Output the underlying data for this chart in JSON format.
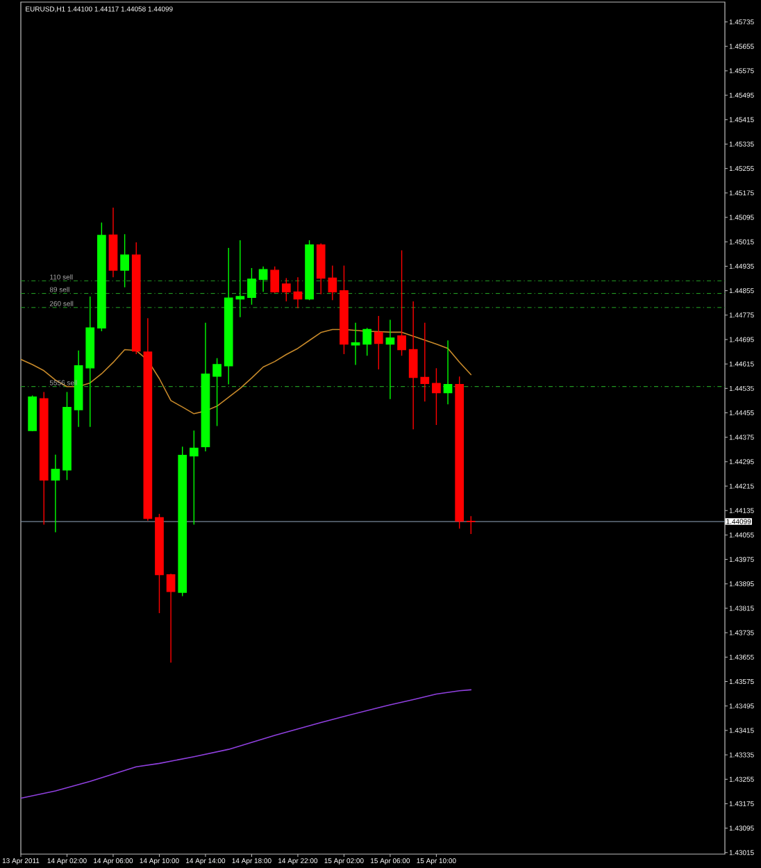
{
  "chart_data": {
    "type": "candlestick",
    "title": "EURUSD,H1 1.44100 1.44117 1.44058 1.44099",
    "x": [
      "2011-04-13T23:00",
      "2011-04-14T00:00",
      "2011-04-14T01:00",
      "2011-04-14T02:00",
      "2011-04-14T03:00",
      "2011-04-14T04:00",
      "2011-04-14T05:00",
      "2011-04-14T06:00",
      "2011-04-14T07:00",
      "2011-04-14T08:00",
      "2011-04-14T09:00",
      "2011-04-14T10:00",
      "2011-04-14T11:00",
      "2011-04-14T12:00",
      "2011-04-14T13:00",
      "2011-04-14T14:00",
      "2011-04-14T15:00",
      "2011-04-14T16:00",
      "2011-04-14T17:00",
      "2011-04-14T18:00",
      "2011-04-14T19:00",
      "2011-04-14T20:00",
      "2011-04-14T21:00",
      "2011-04-14T22:00",
      "2011-04-14T23:00",
      "2011-04-15T00:00",
      "2011-04-15T01:00",
      "2011-04-15T02:00",
      "2011-04-15T03:00",
      "2011-04-15T04:00",
      "2011-04-15T05:00",
      "2011-04-15T06:00",
      "2011-04-15T07:00",
      "2011-04-15T08:00",
      "2011-04-15T09:00",
      "2011-04-15T10:00",
      "2011-04-15T11:00",
      "2011-04-15T12:00",
      "2011-04-15T13:00"
    ],
    "ohlc": [
      [
        1.44397,
        1.44512,
        1.44395,
        1.44507
      ],
      [
        1.44501,
        1.44523,
        1.44089,
        1.44235
      ],
      [
        1.44235,
        1.44318,
        1.44064,
        1.4427
      ],
      [
        1.44268,
        1.44523,
        1.44235,
        1.44473
      ],
      [
        1.44465,
        1.44659,
        1.44409,
        1.44609
      ],
      [
        1.44602,
        1.44836,
        1.44409,
        1.44733
      ],
      [
        1.44733,
        1.45078,
        1.44722,
        1.45036
      ],
      [
        1.45037,
        1.45127,
        1.44899,
        1.44922
      ],
      [
        1.44922,
        1.4504,
        1.44866,
        1.44972
      ],
      [
        1.44972,
        1.45013,
        1.44647,
        1.44657
      ],
      [
        1.44654,
        1.44765,
        1.44102,
        1.44109
      ],
      [
        1.44112,
        1.44124,
        1.43799,
        1.43925
      ],
      [
        1.43925,
        1.43928,
        1.43637,
        1.4387
      ],
      [
        1.43867,
        1.44344,
        1.43855,
        1.44316
      ],
      [
        1.44314,
        1.44397,
        1.44089,
        1.44339
      ],
      [
        1.44344,
        1.4475,
        1.44329,
        1.44582
      ],
      [
        1.44575,
        1.44634,
        1.44412,
        1.44613
      ],
      [
        1.44609,
        1.44995,
        1.44548,
        1.44831
      ],
      [
        1.44828,
        1.4502,
        1.44768,
        1.44836
      ],
      [
        1.44833,
        1.44929,
        1.44809,
        1.44893
      ],
      [
        1.44892,
        1.44934,
        1.44851,
        1.44924
      ],
      [
        1.44922,
        1.44934,
        1.44848,
        1.44851
      ],
      [
        1.44877,
        1.44896,
        1.4482,
        1.44851
      ],
      [
        1.44851,
        1.44899,
        1.44798,
        1.44828
      ],
      [
        1.44828,
        1.4502,
        1.44824,
        1.45005
      ],
      [
        1.45005,
        1.4501,
        1.44843,
        1.44896
      ],
      [
        1.44896,
        1.44937,
        1.44824,
        1.44851
      ],
      [
        1.44855,
        1.44937,
        1.44647,
        1.4468
      ],
      [
        1.44677,
        1.4475,
        1.44612,
        1.44684
      ],
      [
        1.4468,
        1.44733,
        1.44642,
        1.44728
      ],
      [
        1.44719,
        1.44772,
        1.44597,
        1.44682
      ],
      [
        1.4468,
        1.4476,
        1.445,
        1.447
      ],
      [
        1.44707,
        1.44987,
        1.44642,
        1.44662
      ],
      [
        1.44662,
        1.4482,
        1.44401,
        1.44571
      ],
      [
        1.44571,
        1.4475,
        1.44492,
        1.44551
      ],
      [
        1.44551,
        1.44601,
        1.44415,
        1.44521
      ],
      [
        1.44521,
        1.44692,
        1.44483,
        1.44548
      ],
      [
        1.44548,
        1.44574,
        1.44076,
        1.441
      ],
      [
        1.441,
        1.44117,
        1.44058,
        1.44099
      ]
    ],
    "colors": [
      "#00ff00",
      "#ff0000",
      "#00ff00",
      "#00ff00",
      "#00ff00",
      "#00ff00",
      "#00ff00",
      "#ff0000",
      "#00ff00",
      "#ff0000",
      "#ff0000",
      "#ff0000",
      "#ff0000",
      "#00ff00",
      "#00ff00",
      "#00ff00",
      "#00ff00",
      "#00ff00",
      "#00ff00",
      "#00ff00",
      "#00ff00",
      "#ff0000",
      "#ff0000",
      "#ff0000",
      "#00ff00",
      "#ff0000",
      "#ff0000",
      "#ff0000",
      "#00ff00",
      "#00ff00",
      "#ff0000",
      "#00ff00",
      "#ff0000",
      "#ff0000",
      "#ff0000",
      "#ff0000",
      "#00ff00",
      "#ff0000",
      "#ff0000"
    ],
    "series": [
      {
        "type": "line",
        "color": "#c88a2a",
        "x": [
          "2011-04-13T22:00",
          "2011-04-13T23:00",
          "2011-04-14T00:00",
          "2011-04-14T01:00",
          "2011-04-14T02:00",
          "2011-04-14T03:00",
          "2011-04-14T04:00",
          "2011-04-14T05:00",
          "2011-04-14T06:00",
          "2011-04-14T07:00",
          "2011-04-14T08:00",
          "2011-04-14T09:00",
          "2011-04-14T10:00",
          "2011-04-14T11:00",
          "2011-04-14T12:00",
          "2011-04-14T13:00",
          "2011-04-14T14:00",
          "2011-04-14T15:00",
          "2011-04-14T16:00",
          "2011-04-14T17:00",
          "2011-04-14T18:00",
          "2011-04-14T19:00",
          "2011-04-14T20:00",
          "2011-04-14T21:00",
          "2011-04-14T22:00",
          "2011-04-14T23:00",
          "2011-04-15T00:00",
          "2011-04-15T01:00",
          "2011-04-15T02:00",
          "2011-04-15T03:00",
          "2011-04-15T04:00",
          "2011-04-15T05:00",
          "2011-04-15T06:00",
          "2011-04-15T07:00",
          "2011-04-15T08:00",
          "2011-04-15T09:00",
          "2011-04-15T10:00",
          "2011-04-15T11:00",
          "2011-04-15T12:00",
          "2011-04-15T13:00"
        ],
        "values": [
          1.4463,
          1.44613,
          1.44593,
          1.44562,
          1.44541,
          1.44541,
          1.44553,
          1.44583,
          1.4462,
          1.44662,
          1.44659,
          1.44627,
          1.44567,
          1.44495,
          1.44474,
          1.44452,
          1.44461,
          1.44477,
          1.44506,
          1.44535,
          1.44569,
          1.44605,
          1.44623,
          1.44646,
          1.44666,
          1.44692,
          1.44718,
          1.44728,
          1.44728,
          1.44725,
          1.44722,
          1.44721,
          1.44719,
          1.44719,
          1.44706,
          1.44693,
          1.4468,
          1.44666,
          1.44621,
          1.4458
        ]
      },
      {
        "type": "line",
        "color": "#9040e0",
        "x": [
          "2011-04-13T22:00",
          "2011-04-14T01:00",
          "2011-04-14T04:00",
          "2011-04-14T06:00",
          "2011-04-14T08:00",
          "2011-04-14T10:00",
          "2011-04-14T13:00",
          "2011-04-14T16:00",
          "2011-04-14T18:00",
          "2011-04-14T20:00",
          "2011-04-14T22:00",
          "2011-04-15T00:00",
          "2011-04-15T02:00",
          "2011-04-15T04:00",
          "2011-04-15T06:00",
          "2011-04-15T08:00",
          "2011-04-15T10:00",
          "2011-04-15T12:00",
          "2011-04-15T13:00"
        ],
        "values": [
          1.43193,
          1.43217,
          1.43248,
          1.43272,
          1.43296,
          1.43307,
          1.43329,
          1.43353,
          1.43376,
          1.43399,
          1.4342,
          1.43441,
          1.43461,
          1.4348,
          1.43499,
          1.43516,
          1.43534,
          1.43545,
          1.43548
        ]
      }
    ],
    "xlim": [
      "2011-04-13T22:00",
      "2011-04-16T11:00"
    ],
    "xticks": [
      {
        "value": "2011-04-13T22:00",
        "label": "13 Apr 2011"
      },
      {
        "value": "2011-04-14T02:00",
        "label": "14 Apr 02:00"
      },
      {
        "value": "2011-04-14T06:00",
        "label": "14 Apr 06:00"
      },
      {
        "value": "2011-04-14T10:00",
        "label": "14 Apr 10:00"
      },
      {
        "value": "2011-04-14T14:00",
        "label": "14 Apr 14:00"
      },
      {
        "value": "2011-04-14T18:00",
        "label": "14 Apr 18:00"
      },
      {
        "value": "2011-04-14T22:00",
        "label": "14 Apr 22:00"
      },
      {
        "value": "2011-04-15T02:00",
        "label": "15 Apr 02:00"
      },
      {
        "value": "2011-04-15T06:00",
        "label": "15 Apr 06:00"
      },
      {
        "value": "2011-04-15T10:00",
        "label": "15 Apr 10:00"
      }
    ],
    "ylim": [
      1.4301,
      1.458
    ],
    "yticks": [
      1.43015,
      1.43095,
      1.43175,
      1.43255,
      1.43335,
      1.43415,
      1.43495,
      1.43575,
      1.43655,
      1.43735,
      1.43815,
      1.43895,
      1.43975,
      1.44055,
      1.44135,
      1.44215,
      1.44295,
      1.44375,
      1.44455,
      1.44535,
      1.44615,
      1.44695,
      1.44775,
      1.44855,
      1.44935,
      1.45015,
      1.45095,
      1.45175,
      1.45255,
      1.45335,
      1.45415,
      1.45495,
      1.45575,
      1.45655,
      1.45735
    ],
    "ref_lines": [
      {
        "axis": "y",
        "value": 1.44099,
        "label": "1.44099",
        "color": "#778899",
        "line_style": "solid"
      },
      {
        "axis": "y",
        "value": 1.44887,
        "label": "110 sell",
        "color": "#229922",
        "line_style": "dashdot"
      },
      {
        "axis": "y",
        "value": 1.44846,
        "label": "89 sell",
        "color": "#229922",
        "line_style": "dashdot"
      },
      {
        "axis": "y",
        "value": 1.448,
        "label": "260 sell",
        "color": "#229922",
        "line_style": "dashdot"
      },
      {
        "axis": "y",
        "value": 1.44541,
        "label": "5556 sell",
        "color": "#229922",
        "line_style": "dashdot"
      }
    ]
  }
}
